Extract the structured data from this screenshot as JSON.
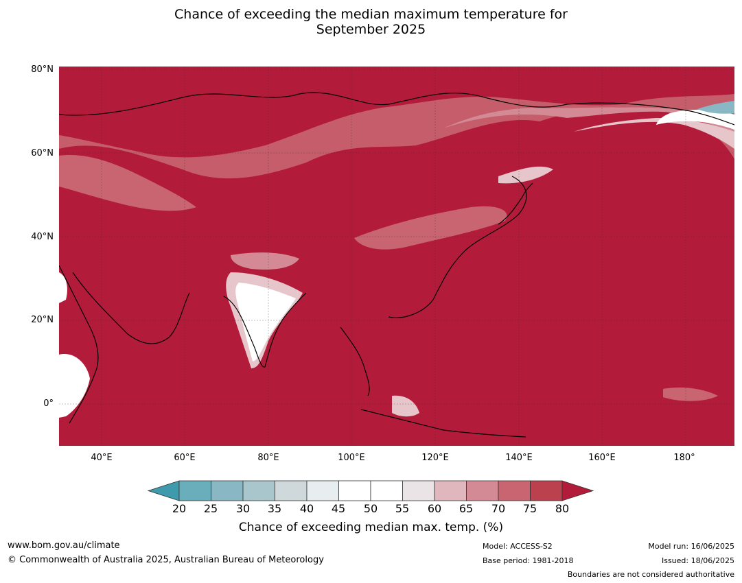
{
  "title_line1": "Chance of exceeding the median maximum temperature for",
  "title_line2": "September 2025",
  "lat_labels": [
    "80°N",
    "60°N",
    "40°N",
    "20°N",
    "0°"
  ],
  "lon_labels": [
    "40°E",
    "60°E",
    "80°E",
    "100°E",
    "120°E",
    "140°E",
    "160°E",
    "180°"
  ],
  "colorbar": {
    "ticks": [
      "20",
      "25",
      "30",
      "35",
      "40",
      "45",
      "50",
      "55",
      "60",
      "65",
      "70",
      "75",
      "80"
    ],
    "colors": [
      "#3f9aac",
      "#6aaebb",
      "#89b8c4",
      "#a9c6cc",
      "#cfd9dc",
      "#e8eef0",
      "#ffffff",
      "#ffffff",
      "#ebe4e6",
      "#dfb7bd",
      "#d38a95",
      "#c86570",
      "#bb414f",
      "#b31b3a"
    ],
    "label": "Chance of exceeding median max. temp. (%)"
  },
  "colors": {
    "high": "#b31b3a",
    "mid_high": "#c86570",
    "light_pink": "#e6c6cb",
    "neutral": "#ffffff",
    "teal": "#89b8c4"
  },
  "footer": {
    "url": "www.bom.gov.au/climate",
    "copyright": "© Commonwealth of Australia 2025, Australian Bureau of Meteorology",
    "model": "Model: ACCESS-S2",
    "base_period": "Base period: 1981-2018",
    "model_run": "Model run: 16/06/2025",
    "issued": "Issued: 18/06/2025",
    "disclaimer": "Boundaries are not considered authoritative"
  }
}
